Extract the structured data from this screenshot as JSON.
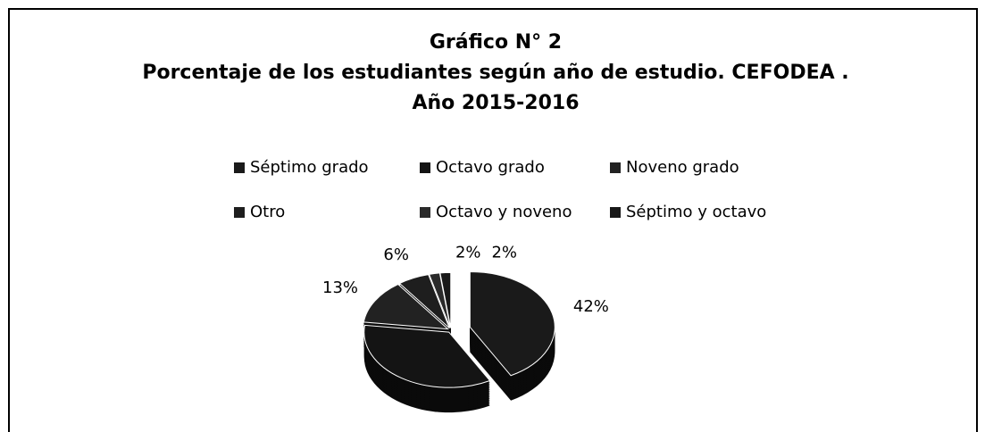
{
  "chart_data": {
    "type": "pie",
    "title": "Gráfico N° 2",
    "subtitle": [
      "Porcentaje de los estudiantes según año de estudio. CEFODEA .",
      "Año 2015-2016"
    ],
    "categories": [
      "Séptimo grado",
      "Octavo grado",
      "Noveno grado",
      "Otro",
      "Octavo y noveno",
      "Séptimo y octavo"
    ],
    "values": [
      42,
      35,
      13,
      6,
      2,
      2
    ],
    "value_labels": [
      "42%",
      null,
      "13%",
      "6%",
      "2%",
      "2%"
    ],
    "colors": [
      "#1a1a1a",
      "#141414",
      "#222222",
      "#1e1e1e",
      "#2a2a2a",
      "#181818"
    ],
    "legend": "top"
  }
}
